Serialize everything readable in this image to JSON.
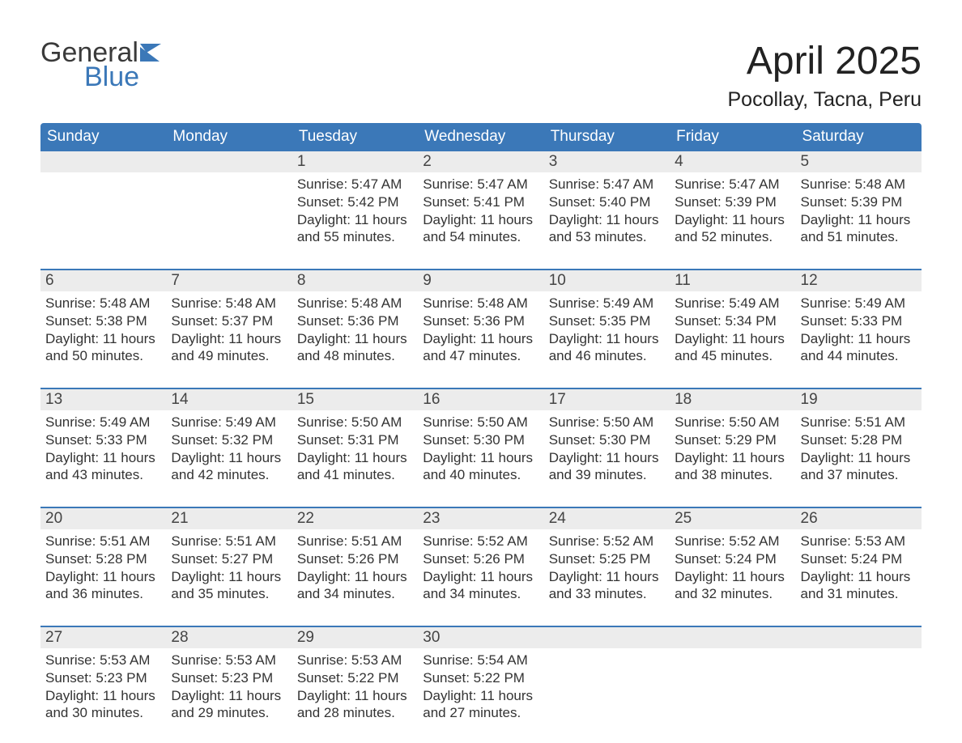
{
  "branding": {
    "word1": "General",
    "word2": "Blue",
    "word1_color": "#3a3a3a",
    "word2_color": "#3b78b8",
    "flag_color": "#3b78b8"
  },
  "title": "April 2025",
  "location": "Pocollay, Tacna, Peru",
  "colors": {
    "header_bg": "#3b78b8",
    "header_text": "#ffffff",
    "daynum_bg": "#ececec",
    "daynum_text": "#444444",
    "body_text": "#333333",
    "divider": "#3b78b8",
    "page_bg": "#ffffff"
  },
  "typography": {
    "family": "Segoe UI, Arial, sans-serif",
    "title_fontsize": 48,
    "location_fontsize": 25,
    "dow_fontsize": 19,
    "daynum_fontsize": 19,
    "body_fontsize": 17
  },
  "days_of_week": [
    "Sunday",
    "Monday",
    "Tuesday",
    "Wednesday",
    "Thursday",
    "Friday",
    "Saturday"
  ],
  "labels": {
    "sunrise": "Sunrise:",
    "sunset": "Sunset:",
    "daylight": "Daylight:"
  },
  "weeks": [
    [
      null,
      null,
      {
        "n": "1",
        "sunrise": "5:47 AM",
        "sunset": "5:42 PM",
        "daylight": "11 hours and 55 minutes."
      },
      {
        "n": "2",
        "sunrise": "5:47 AM",
        "sunset": "5:41 PM",
        "daylight": "11 hours and 54 minutes."
      },
      {
        "n": "3",
        "sunrise": "5:47 AM",
        "sunset": "5:40 PM",
        "daylight": "11 hours and 53 minutes."
      },
      {
        "n": "4",
        "sunrise": "5:47 AM",
        "sunset": "5:39 PM",
        "daylight": "11 hours and 52 minutes."
      },
      {
        "n": "5",
        "sunrise": "5:48 AM",
        "sunset": "5:39 PM",
        "daylight": "11 hours and 51 minutes."
      }
    ],
    [
      {
        "n": "6",
        "sunrise": "5:48 AM",
        "sunset": "5:38 PM",
        "daylight": "11 hours and 50 minutes."
      },
      {
        "n": "7",
        "sunrise": "5:48 AM",
        "sunset": "5:37 PM",
        "daylight": "11 hours and 49 minutes."
      },
      {
        "n": "8",
        "sunrise": "5:48 AM",
        "sunset": "5:36 PM",
        "daylight": "11 hours and 48 minutes."
      },
      {
        "n": "9",
        "sunrise": "5:48 AM",
        "sunset": "5:36 PM",
        "daylight": "11 hours and 47 minutes."
      },
      {
        "n": "10",
        "sunrise": "5:49 AM",
        "sunset": "5:35 PM",
        "daylight": "11 hours and 46 minutes."
      },
      {
        "n": "11",
        "sunrise": "5:49 AM",
        "sunset": "5:34 PM",
        "daylight": "11 hours and 45 minutes."
      },
      {
        "n": "12",
        "sunrise": "5:49 AM",
        "sunset": "5:33 PM",
        "daylight": "11 hours and 44 minutes."
      }
    ],
    [
      {
        "n": "13",
        "sunrise": "5:49 AM",
        "sunset": "5:33 PM",
        "daylight": "11 hours and 43 minutes."
      },
      {
        "n": "14",
        "sunrise": "5:49 AM",
        "sunset": "5:32 PM",
        "daylight": "11 hours and 42 minutes."
      },
      {
        "n": "15",
        "sunrise": "5:50 AM",
        "sunset": "5:31 PM",
        "daylight": "11 hours and 41 minutes."
      },
      {
        "n": "16",
        "sunrise": "5:50 AM",
        "sunset": "5:30 PM",
        "daylight": "11 hours and 40 minutes."
      },
      {
        "n": "17",
        "sunrise": "5:50 AM",
        "sunset": "5:30 PM",
        "daylight": "11 hours and 39 minutes."
      },
      {
        "n": "18",
        "sunrise": "5:50 AM",
        "sunset": "5:29 PM",
        "daylight": "11 hours and 38 minutes."
      },
      {
        "n": "19",
        "sunrise": "5:51 AM",
        "sunset": "5:28 PM",
        "daylight": "11 hours and 37 minutes."
      }
    ],
    [
      {
        "n": "20",
        "sunrise": "5:51 AM",
        "sunset": "5:28 PM",
        "daylight": "11 hours and 36 minutes."
      },
      {
        "n": "21",
        "sunrise": "5:51 AM",
        "sunset": "5:27 PM",
        "daylight": "11 hours and 35 minutes."
      },
      {
        "n": "22",
        "sunrise": "5:51 AM",
        "sunset": "5:26 PM",
        "daylight": "11 hours and 34 minutes."
      },
      {
        "n": "23",
        "sunrise": "5:52 AM",
        "sunset": "5:26 PM",
        "daylight": "11 hours and 34 minutes."
      },
      {
        "n": "24",
        "sunrise": "5:52 AM",
        "sunset": "5:25 PM",
        "daylight": "11 hours and 33 minutes."
      },
      {
        "n": "25",
        "sunrise": "5:52 AM",
        "sunset": "5:24 PM",
        "daylight": "11 hours and 32 minutes."
      },
      {
        "n": "26",
        "sunrise": "5:53 AM",
        "sunset": "5:24 PM",
        "daylight": "11 hours and 31 minutes."
      }
    ],
    [
      {
        "n": "27",
        "sunrise": "5:53 AM",
        "sunset": "5:23 PM",
        "daylight": "11 hours and 30 minutes."
      },
      {
        "n": "28",
        "sunrise": "5:53 AM",
        "sunset": "5:23 PM",
        "daylight": "11 hours and 29 minutes."
      },
      {
        "n": "29",
        "sunrise": "5:53 AM",
        "sunset": "5:22 PM",
        "daylight": "11 hours and 28 minutes."
      },
      {
        "n": "30",
        "sunrise": "5:54 AM",
        "sunset": "5:22 PM",
        "daylight": "11 hours and 27 minutes."
      },
      null,
      null,
      null
    ]
  ]
}
